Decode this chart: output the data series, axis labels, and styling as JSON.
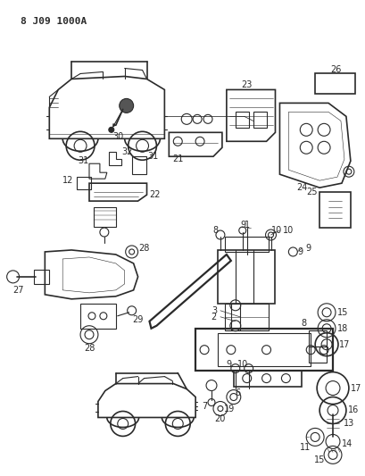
{
  "title": "8 J09 1000A",
  "bg": "#ffffff",
  "lc": "#2a2a2a",
  "figsize": [
    4.09,
    5.33
  ],
  "dpi": 100
}
